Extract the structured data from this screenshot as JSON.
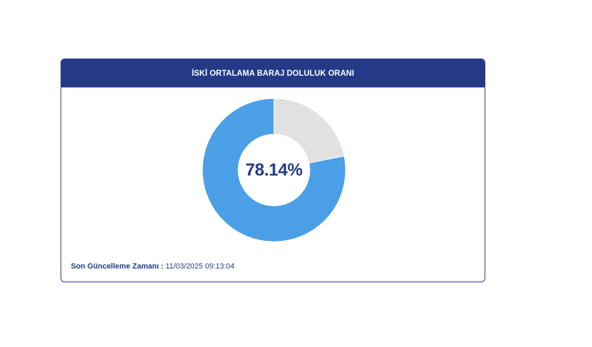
{
  "card": {
    "title": "İSKİ ORTALAMA BARAJ DOLULUK ORANI",
    "center_label": "78.14%",
    "footer_label": "Son Güncelleme Zamanı :",
    "footer_value": "11/03/2025 09:13:04"
  },
  "colors": {
    "header_bg": "#253a86",
    "fill": "#4b9fe6",
    "empty": "#e1e1e1",
    "text": "#253a86"
  },
  "chart_data": {
    "type": "pie",
    "categories": [
      "",
      ""
    ],
    "values": [
      78.14,
      21.86
    ],
    "title": "İSKİ ORTALAMA BARAJ DOLULUK ORANI"
  }
}
